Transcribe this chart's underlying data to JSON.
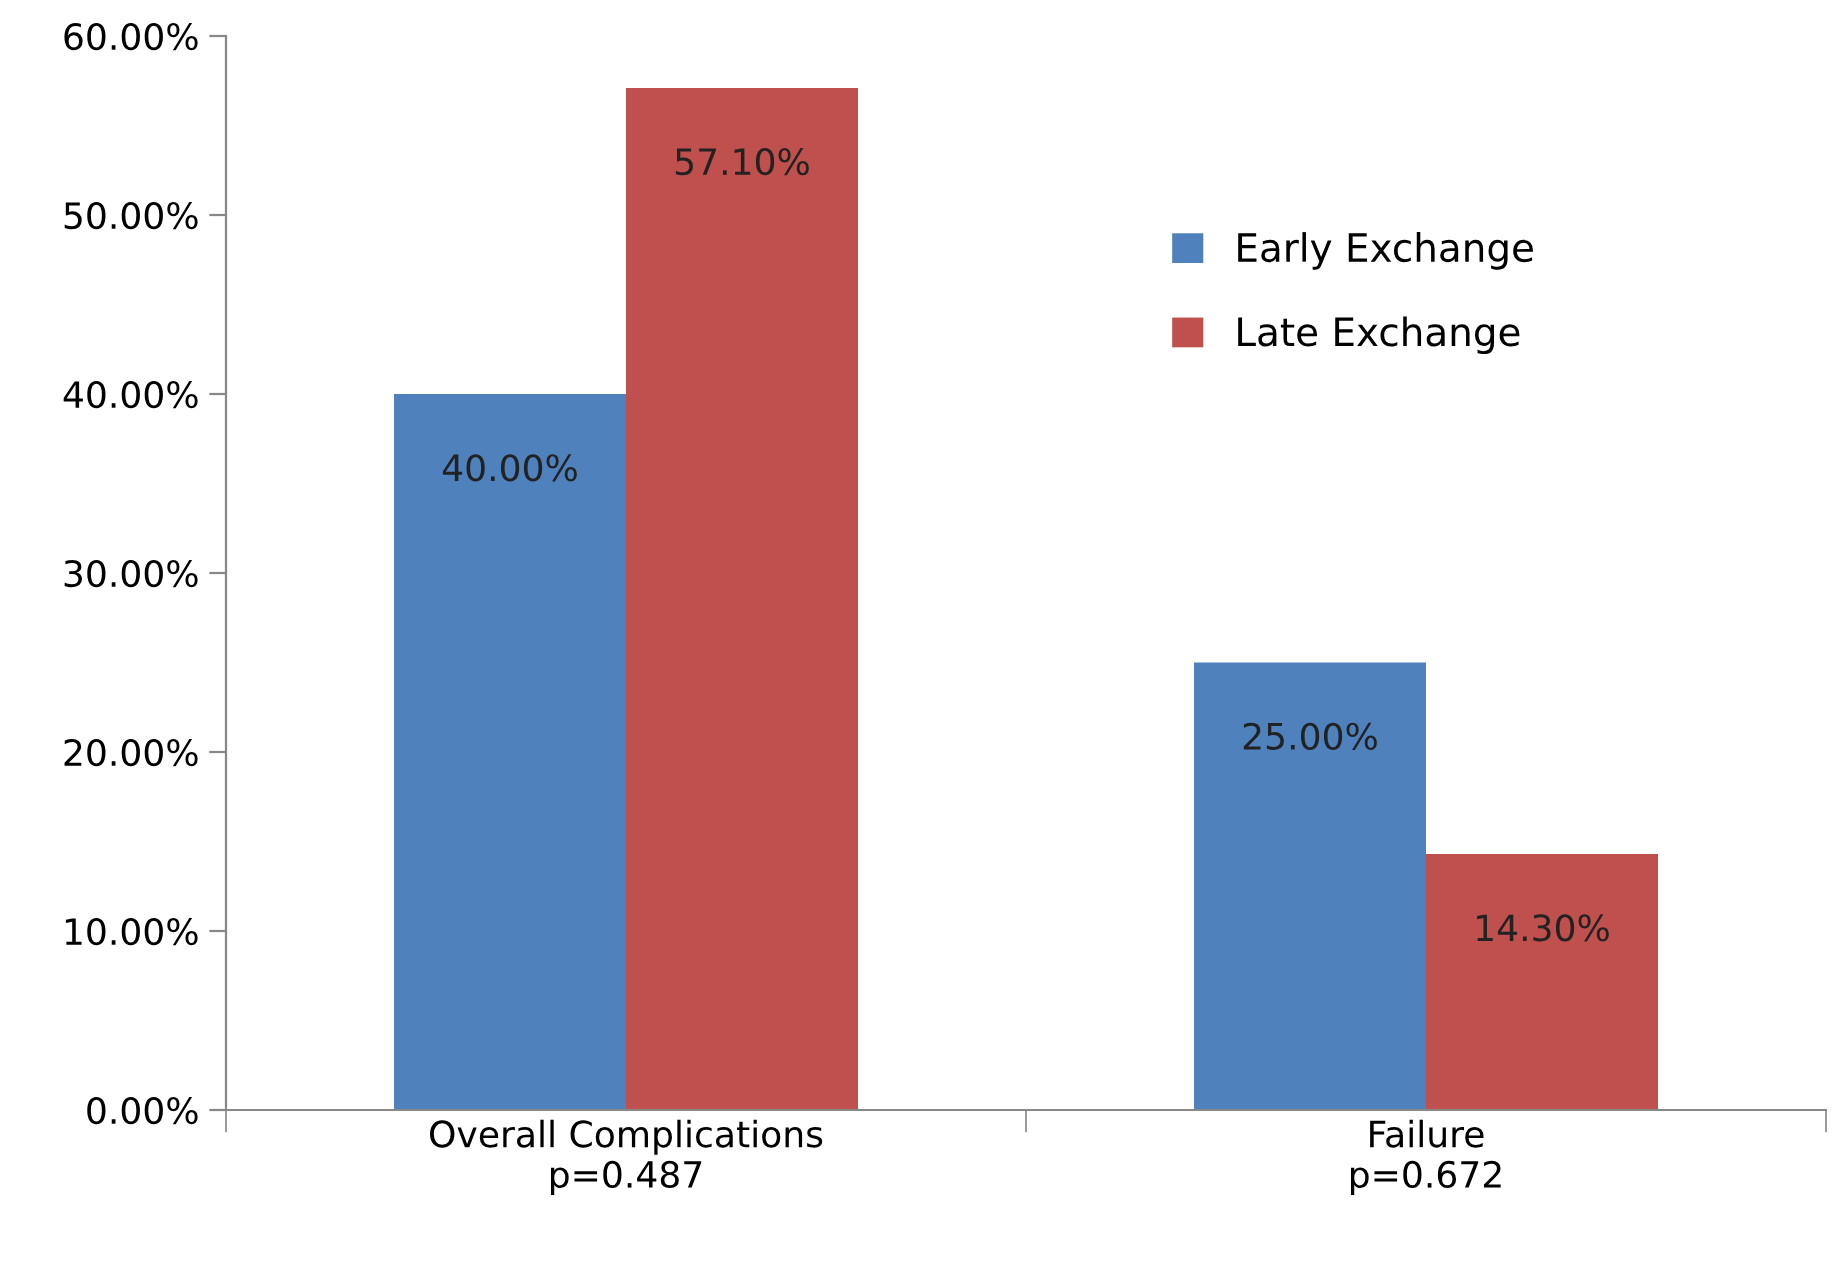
{
  "chart_data": {
    "type": "bar",
    "categories": [
      "Overall Complications\np=0.487",
      "Failure\np=0.672"
    ],
    "series": [
      {
        "name": "Early Exchange",
        "color": "#4f81bd",
        "values": [
          40,
          25
        ],
        "value_labels": [
          "40.00%",
          "25.00%"
        ]
      },
      {
        "name": "Late Exchange",
        "color": "#c0504d",
        "values": [
          57.1,
          14.3
        ],
        "value_labels": [
          "57.10%",
          "14.30%"
        ]
      }
    ],
    "ylim": [
      0,
      60
    ],
    "yticks": [
      {
        "value": 0,
        "label": "0.00%"
      },
      {
        "value": 10,
        "label": "10.00%"
      },
      {
        "value": 20,
        "label": "20.00%"
      },
      {
        "value": 30,
        "label": "30.00%"
      },
      {
        "value": 40,
        "label": "40.00%"
      },
      {
        "value": 50,
        "label": "50.00%"
      },
      {
        "value": 60,
        "label": "60.00%"
      }
    ],
    "grid": false,
    "legend": "top right"
  }
}
